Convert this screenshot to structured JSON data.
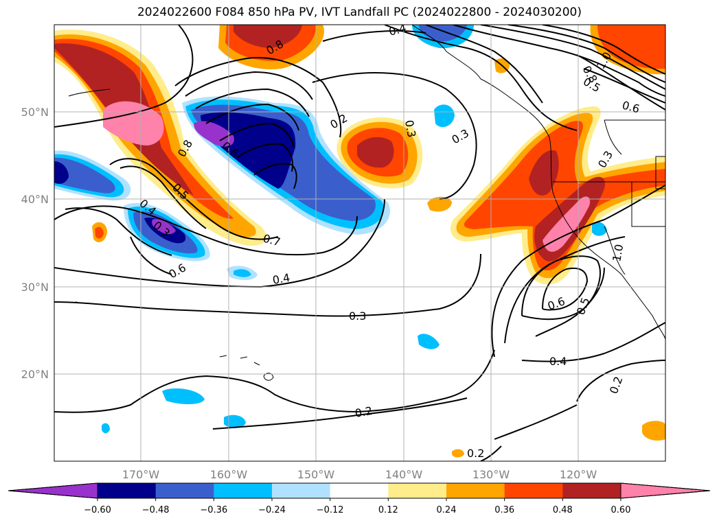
{
  "title": "2024022600 F084 850 hPa PV, IVT Landfall PC (2024022800 - 2024030200)",
  "lat_labels": [
    "50°N",
    "40°N",
    "30°N",
    "20°N"
  ],
  "lon_labels": [
    "170°W",
    "160°W",
    "150°W",
    "140°W",
    "130°W",
    "120°W"
  ],
  "contour_labels": [
    "0.4",
    "0.8",
    "0.2",
    "0.3",
    "0.3",
    "0.8",
    "0.6",
    "0.5",
    "0.4",
    "0.3",
    "0.7",
    "0.6",
    "0.4",
    "0.3",
    "0.2",
    "0.2",
    "0.6",
    "0.5",
    "0.4",
    "0.2",
    "0.3",
    "0.8",
    "0.6",
    "1.0",
    "0.5",
    "1.0"
  ],
  "colorbar": {
    "tick_labels": [
      "−0.60",
      "−0.48",
      "−0.36",
      "−0.24",
      "−0.12",
      "0.12",
      "0.24",
      "0.36",
      "0.48",
      "0.60"
    ],
    "colors": [
      "#9932cc",
      "#00008b",
      "#3a5fcd",
      "#00bfff",
      "#b0e2ff",
      "#ffffff",
      "#ffec8b",
      "#ffa500",
      "#ff4500",
      "#b22222",
      "#ff82ab"
    ]
  },
  "colors": {
    "pos_low": "#ffec8b",
    "pos_orange": "#ffa500",
    "pos_red": "#ff4500",
    "pos_dark": "#b22222",
    "pos_pink": "#ff82ab",
    "neg_light": "#b0e2ff",
    "neg_cyan": "#00bfff",
    "neg_blue": "#3a5fcd",
    "neg_navy": "#00008b",
    "neg_purple": "#9932cc"
  }
}
